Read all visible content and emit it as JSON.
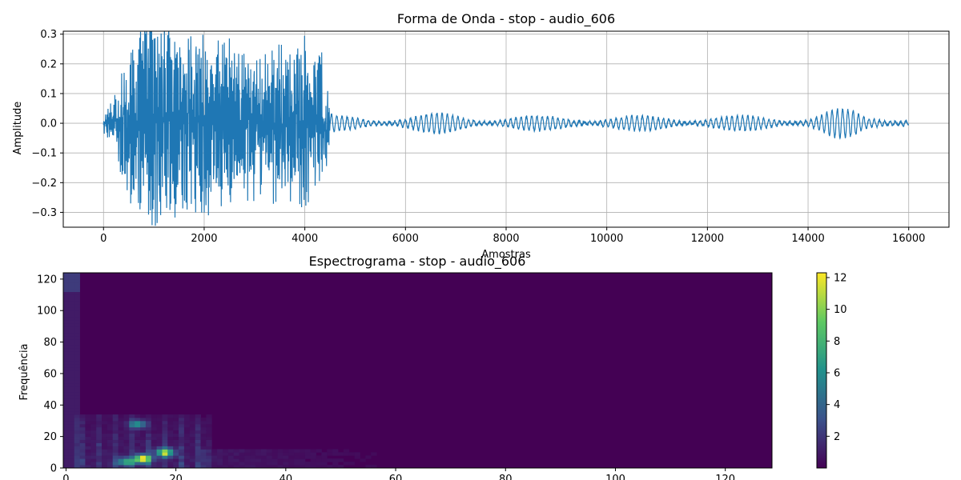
{
  "chart_data": [
    {
      "type": "line",
      "title": "Forma de Onda - stop - audio_606",
      "xlabel": "Amostras",
      "ylabel": "Amplitude",
      "xlim": [
        -800,
        16800
      ],
      "ylim": [
        -0.35,
        0.31
      ],
      "grid": true,
      "line_color": "#1f77b4",
      "x_ticks": [
        0,
        2000,
        4000,
        6000,
        8000,
        10000,
        12000,
        14000,
        16000
      ],
      "x_tick_labels": [
        "0",
        "2000",
        "4000",
        "6000",
        "8000",
        "10000",
        "12000",
        "14000",
        "16000"
      ],
      "y_ticks": [
        -0.3,
        -0.2,
        -0.1,
        0.0,
        0.1,
        0.2,
        0.3
      ],
      "y_tick_labels": [
        "−0.3",
        "−0.2",
        "−0.1",
        "0.0",
        "0.1",
        "0.2",
        "0.3"
      ],
      "n_samples": 16000,
      "envelope_x": [
        0,
        200,
        400,
        700,
        1200,
        1800,
        2500,
        3200,
        4000,
        4400,
        4500,
        4700,
        6000,
        6600,
        8000,
        10000,
        12000,
        14000,
        14500,
        14900,
        15200,
        15900,
        16000
      ],
      "envelope_amp": [
        0.03,
        0.06,
        0.18,
        0.27,
        0.3,
        0.25,
        0.22,
        0.2,
        0.22,
        0.18,
        0.03,
        0.025,
        0.025,
        0.035,
        0.025,
        0.025,
        0.025,
        0.025,
        0.05,
        0.045,
        0.025,
        0.03,
        0.02
      ]
    },
    {
      "type": "heatmap",
      "title": "Espectrograma - stop - audio_606",
      "xlabel": "",
      "ylabel": "Frequência",
      "xlim": [
        -0.5,
        128.5
      ],
      "ylim": [
        0,
        124
      ],
      "colormap": "viridis",
      "colorbar_range": [
        0,
        12.3
      ],
      "x_ticks": [
        0,
        20,
        40,
        60,
        80,
        100,
        120
      ],
      "x_tick_labels": [
        "0",
        "20",
        "40",
        "60",
        "80",
        "100",
        "120"
      ],
      "y_ticks": [
        0,
        20,
        40,
        60,
        80,
        100,
        120
      ],
      "y_tick_labels": [
        "0",
        "20",
        "40",
        "60",
        "80",
        "100",
        "120"
      ],
      "colorbar_ticks": [
        2,
        4,
        6,
        8,
        10,
        12
      ],
      "colorbar_tick_labels": [
        "2",
        "4",
        "6",
        "8",
        "10",
        "12"
      ],
      "hotspots": [
        {
          "t": 11,
          "f": 3,
          "v": 7
        },
        {
          "t": 14,
          "f": 5,
          "v": 12.3
        },
        {
          "t": 18,
          "f": 9,
          "v": 10
        },
        {
          "t": 13,
          "f": 27,
          "v": 6
        }
      ]
    }
  ]
}
